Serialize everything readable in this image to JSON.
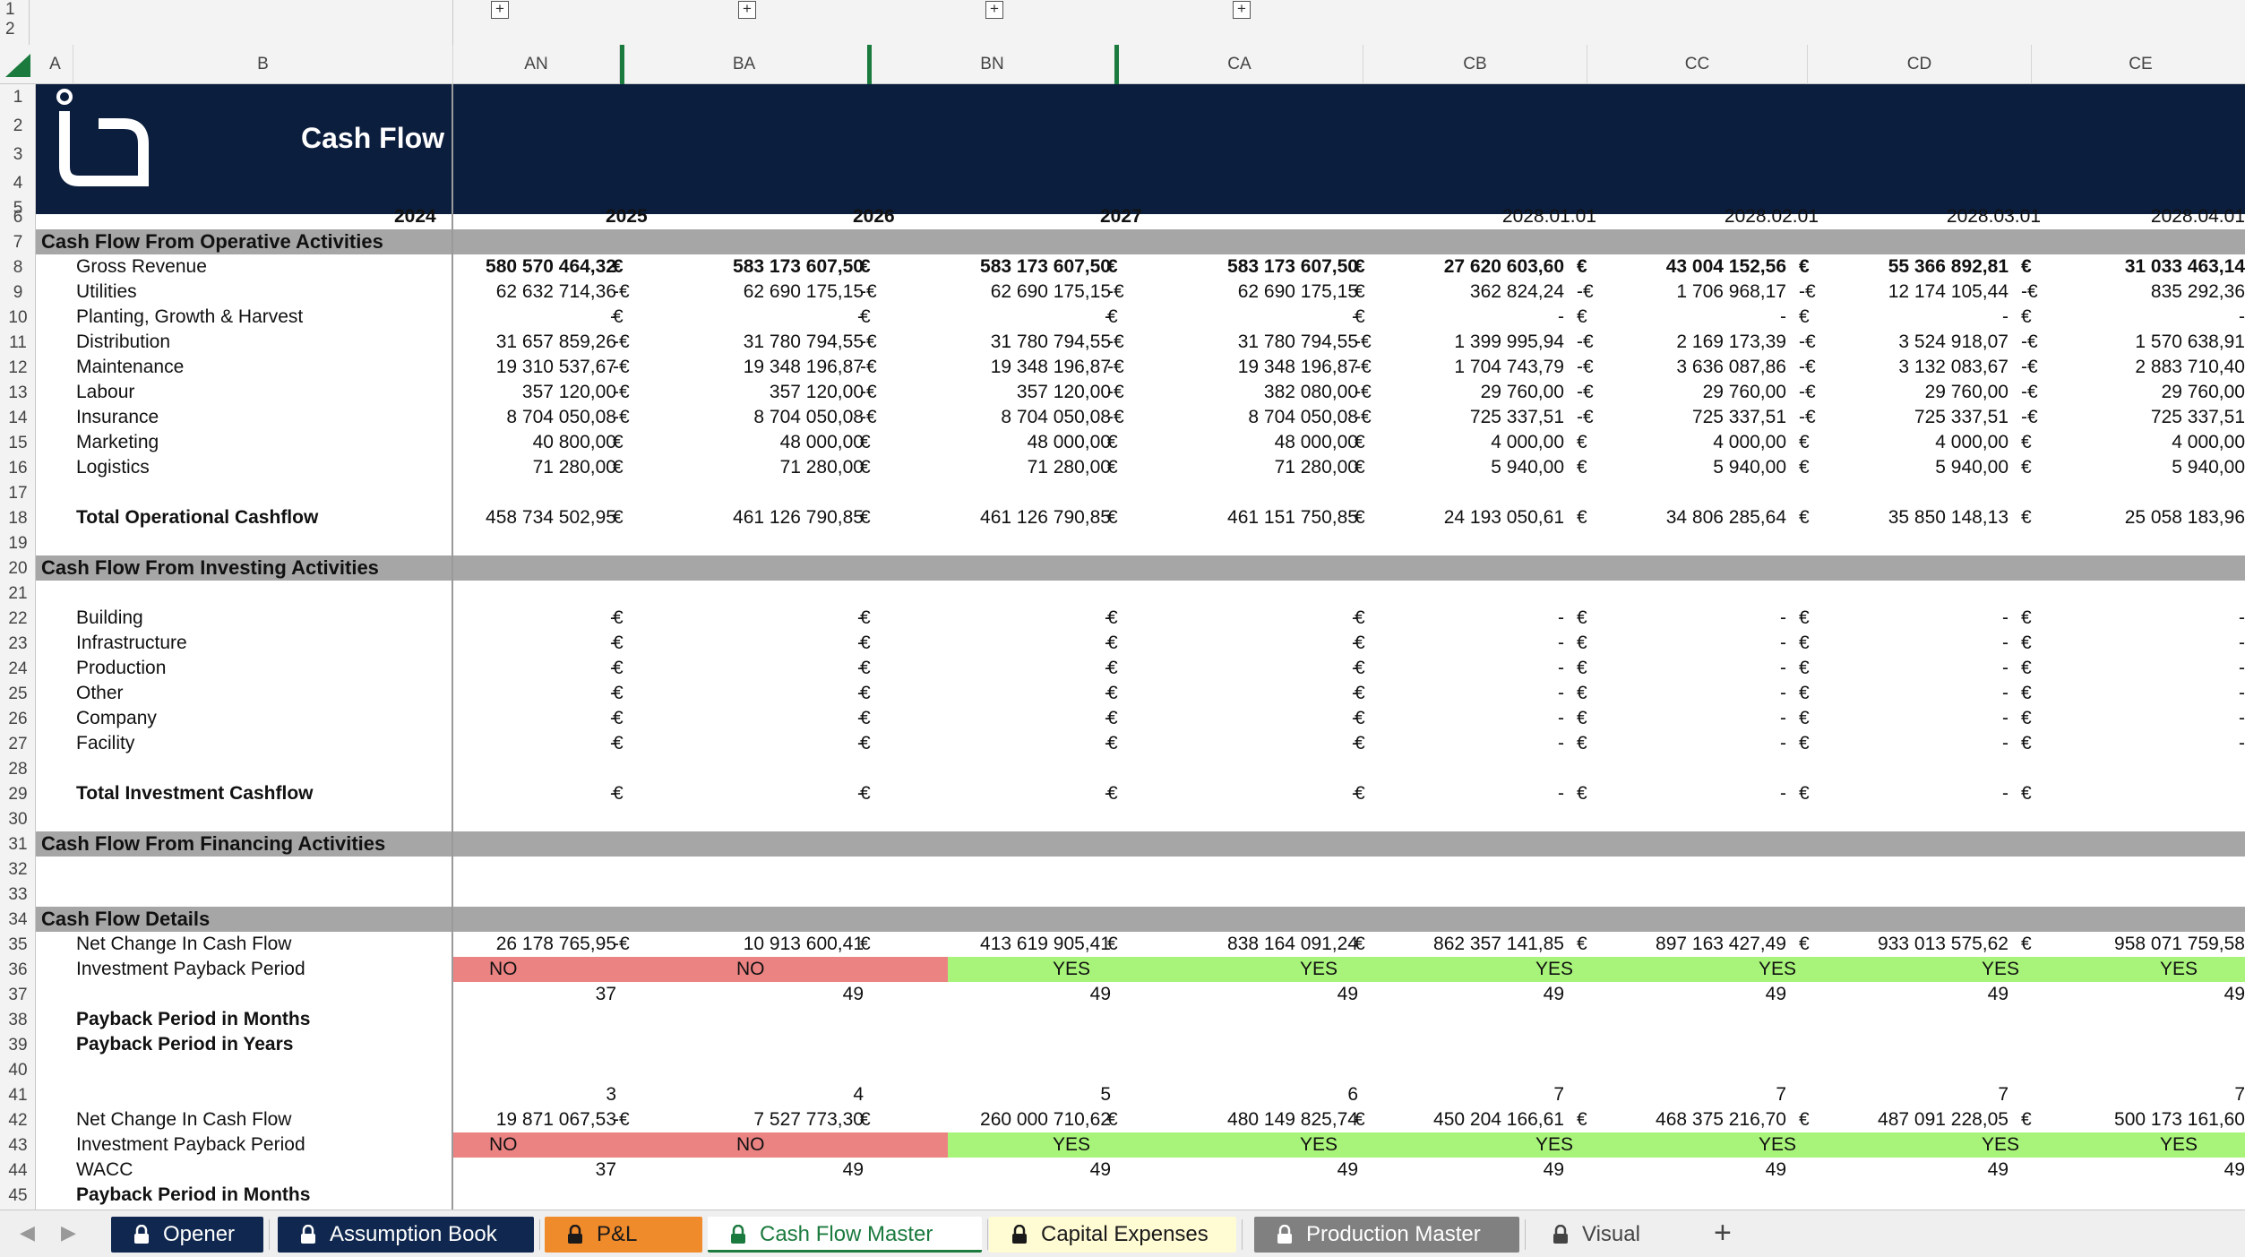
{
  "outline": {
    "levels": [
      "1",
      "2"
    ],
    "expand_symbol": "+"
  },
  "columns": [
    "A",
    "B",
    "AN",
    "BA",
    "BN",
    "CA",
    "CB",
    "CC",
    "CD",
    "CE"
  ],
  "rows": [
    "1",
    "2",
    "3",
    "4",
    "5",
    "6",
    "7",
    "8",
    "9",
    "10",
    "11",
    "12",
    "13",
    "14",
    "15",
    "16",
    "17",
    "18",
    "19",
    "20",
    "21",
    "22",
    "23",
    "24",
    "25",
    "26",
    "27",
    "28",
    "29",
    "30",
    "31",
    "32",
    "33",
    "34",
    "35",
    "36",
    "37",
    "38",
    "39",
    "40",
    "41",
    "42",
    "43",
    "44",
    "45"
  ],
  "banner": {
    "title": "Cash Flow"
  },
  "periods": [
    "2024",
    "2025",
    "2026",
    "2027",
    "2028.01.01",
    "2028.02.01",
    "2028.03.01",
    "2028.04.01"
  ],
  "sections": {
    "operative": "Cash Flow From Operative Activities",
    "investing": "Cash Flow From Investing Activities",
    "financing": "Cash Flow From Financing Activities",
    "details": "Cash Flow Details"
  },
  "operative_rows": [
    {
      "label": "Gross Revenue",
      "bold": true,
      "values": [
        "580 570 464,32",
        "583 173 607,50",
        "583 173 607,50",
        "583 173 607,50",
        "27 620 603,60",
        "43 004 152,56",
        "55 366 892,81",
        "31 033 463,14"
      ],
      "cur": [
        "€",
        "€",
        "€",
        "€",
        "€",
        "€",
        "€",
        ""
      ]
    },
    {
      "label": "Utilities",
      "values": [
        "62 632 714,36",
        "62 690 175,15",
        "62 690 175,15",
        "62 690 175,15",
        "362 824,24",
        "1 706 968,17",
        "12 174 105,44",
        "835 292,36"
      ],
      "cur": [
        "-€",
        "-€",
        "-€",
        "€",
        "-€",
        "-€",
        "-€",
        ""
      ]
    },
    {
      "label": "Planting, Growth & Harvest",
      "values": [
        "-",
        "-",
        "-",
        "-",
        "-",
        "-",
        "-",
        "-"
      ],
      "cur": [
        "€",
        "€",
        "€",
        "€",
        "€",
        "€",
        "€",
        ""
      ]
    },
    {
      "label": "Distribution",
      "values": [
        "31 657 859,26",
        "31 780 794,55",
        "31 780 794,55",
        "31 780 794,55",
        "1 399 995,94",
        "2 169 173,39",
        "3 524 918,07",
        "1 570 638,91"
      ],
      "cur": [
        "-€",
        "-€",
        "-€",
        "-€",
        "-€",
        "-€",
        "-€",
        ""
      ]
    },
    {
      "label": "Maintenance",
      "values": [
        "19 310 537,67",
        "19 348 196,87",
        "19 348 196,87",
        "19 348 196,87",
        "1 704 743,79",
        "3 636 087,86",
        "3 132 083,67",
        "2 883 710,40"
      ],
      "cur": [
        "-€",
        "-€",
        "-€",
        "-€",
        "-€",
        "-€",
        "-€",
        ""
      ]
    },
    {
      "label": "Labour",
      "values": [
        "357 120,00",
        "357 120,00",
        "357 120,00",
        "382 080,00",
        "29 760,00",
        "29 760,00",
        "29 760,00",
        "29 760,00"
      ],
      "cur": [
        "-€",
        "-€",
        "-€",
        "-€",
        "-€",
        "-€",
        "-€",
        ""
      ]
    },
    {
      "label": "Insurance",
      "values": [
        "8 704 050,08",
        "8 704 050,08",
        "8 704 050,08",
        "8 704 050,08",
        "725 337,51",
        "725 337,51",
        "725 337,51",
        "725 337,51"
      ],
      "cur": [
        "-€",
        "-€",
        "-€",
        "-€",
        "-€",
        "-€",
        "-€",
        ""
      ]
    },
    {
      "label": "Marketing",
      "values": [
        "40 800,00",
        "48 000,00",
        "48 000,00",
        "48 000,00",
        "4 000,00",
        "4 000,00",
        "4 000,00",
        "4 000,00"
      ],
      "cur": [
        "€",
        "€",
        "€",
        "€",
        "€",
        "€",
        "€",
        ""
      ]
    },
    {
      "label": "Logistics",
      "values": [
        "71 280,00",
        "71 280,00",
        "71 280,00",
        "71 280,00",
        "5 940,00",
        "5 940,00",
        "5 940,00",
        "5 940,00"
      ],
      "cur": [
        "€",
        "€",
        "€",
        "€",
        "€",
        "€",
        "€",
        ""
      ]
    }
  ],
  "total_operational": {
    "label": "Total Operational Cashflow",
    "values": [
      "458 734 502,95",
      "461 126 790,85",
      "461 126 790,85",
      "461 151 750,85",
      "24 193 050,61",
      "34 806 285,64",
      "35 850 148,13",
      "25 058 183,96"
    ],
    "cur": [
      "€",
      "€",
      "€",
      "€",
      "€",
      "€",
      "€",
      ""
    ]
  },
  "investing_rows": [
    {
      "label": "Building",
      "values": [
        "-",
        "-",
        "-",
        "-",
        "-",
        "-",
        "-",
        "-"
      ],
      "cur": [
        "€",
        "€",
        "€",
        "€",
        "€",
        "€",
        "€",
        ""
      ]
    },
    {
      "label": "Infrastructure",
      "values": [
        "-",
        "-",
        "-",
        "-",
        "-",
        "-",
        "-",
        "-"
      ],
      "cur": [
        "€",
        "€",
        "€",
        "€",
        "€",
        "€",
        "€",
        ""
      ]
    },
    {
      "label": "Production",
      "values": [
        "-",
        "-",
        "-",
        "-",
        "-",
        "-",
        "-",
        "-"
      ],
      "cur": [
        "€",
        "€",
        "€",
        "€",
        "€",
        "€",
        "€",
        ""
      ]
    },
    {
      "label": "Other",
      "values": [
        "-",
        "-",
        "-",
        "-",
        "-",
        "-",
        "-",
        "-"
      ],
      "cur": [
        "€",
        "€",
        "€",
        "€",
        "€",
        "€",
        "€",
        ""
      ]
    },
    {
      "label": "Company",
      "values": [
        "-",
        "-",
        "-",
        "-",
        "-",
        "-",
        "-",
        "-"
      ],
      "cur": [
        "€",
        "€",
        "€",
        "€",
        "€",
        "€",
        "€",
        ""
      ]
    },
    {
      "label": "Facility",
      "values": [
        "-",
        "-",
        "-",
        "-",
        "-",
        "-",
        "-",
        "-"
      ],
      "cur": [
        "€",
        "€",
        "€",
        "€",
        "€",
        "€",
        "€",
        ""
      ]
    }
  ],
  "total_investment": {
    "label": "Total Investment Cashflow",
    "values": [
      "-",
      "-",
      "-",
      "-",
      "-",
      "-",
      "-",
      ""
    ],
    "cur": [
      "€",
      "€",
      "€",
      "€",
      "€",
      "€",
      "€",
      ""
    ]
  },
  "details": {
    "net_change_1": {
      "label": "Net Change In Cash Flow",
      "values": [
        "26 178 765,95",
        "10 913 600,41",
        "413 619 905,41",
        "838 164 091,24",
        "862 357 141,85",
        "897 163 427,49",
        "933 013 575,62",
        "958 071 759,58"
      ],
      "cur": [
        "-€",
        "€",
        "€",
        "€",
        "€",
        "€",
        "€",
        ""
      ]
    },
    "payback_1": {
      "label": "Investment Payback Period",
      "flags": [
        "NO",
        "NO",
        "YES",
        "YES",
        "YES",
        "YES",
        "YES",
        "YES"
      ]
    },
    "months_row_1": [
      "37",
      "49",
      "49",
      "49",
      "49",
      "49",
      "49",
      "49"
    ],
    "payback_months_label": "Payback Period in Months",
    "payback_years_label": "Payback Period in Years",
    "years_row": [
      "3",
      "4",
      "5",
      "6",
      "7",
      "7",
      "7",
      "7"
    ],
    "net_change_2": {
      "label": "Net Change In Cash Flow",
      "values": [
        "19 871 067,53",
        "7 527 773,30",
        "260 000 710,62",
        "480 149 825,74",
        "450 204 166,61",
        "468 375 216,70",
        "487 091 228,05",
        "500 173 161,60"
      ],
      "cur": [
        "-€",
        "€",
        "€",
        "€",
        "€",
        "€",
        "€",
        ""
      ]
    },
    "payback_2": {
      "label": "Investment Payback Period",
      "flags": [
        "NO",
        "NO",
        "YES",
        "YES",
        "YES",
        "YES",
        "YES",
        "YES"
      ]
    },
    "wacc": {
      "label": "WACC",
      "values": [
        "37",
        "49",
        "49",
        "49",
        "49",
        "49",
        "49",
        "49"
      ]
    },
    "payback_months_label_2": "Payback Period in Months"
  },
  "tabs": [
    {
      "label": "Opener",
      "bg": "#10284f",
      "fg": "#ffffff",
      "locked": true
    },
    {
      "label": "Assumption Book",
      "bg": "#10284f",
      "fg": "#ffffff",
      "locked": true
    },
    {
      "label": "P&L",
      "bg": "#f08b2c",
      "fg": "#1a1a1a",
      "locked": true
    },
    {
      "label": "Cash Flow Master",
      "bg": "#ffffff",
      "fg": "#1b7a3e",
      "locked": true,
      "active": true
    },
    {
      "label": "Capital Expenses",
      "bg": "#fffbd3",
      "fg": "#1a1a1a",
      "locked": true
    },
    {
      "label": "Production Master",
      "bg": "#808080",
      "fg": "#ffffff",
      "locked": true
    },
    {
      "label": "Visual",
      "bg": "#efefef",
      "fg": "#444444",
      "locked": true
    }
  ],
  "add_tab_symbol": "+",
  "colors": {
    "banner": "#0c1e3e",
    "section": "#a6a6a6",
    "no": "#eb8383",
    "yes": "#a8f47a",
    "excel_green": "#1b7a3e"
  }
}
